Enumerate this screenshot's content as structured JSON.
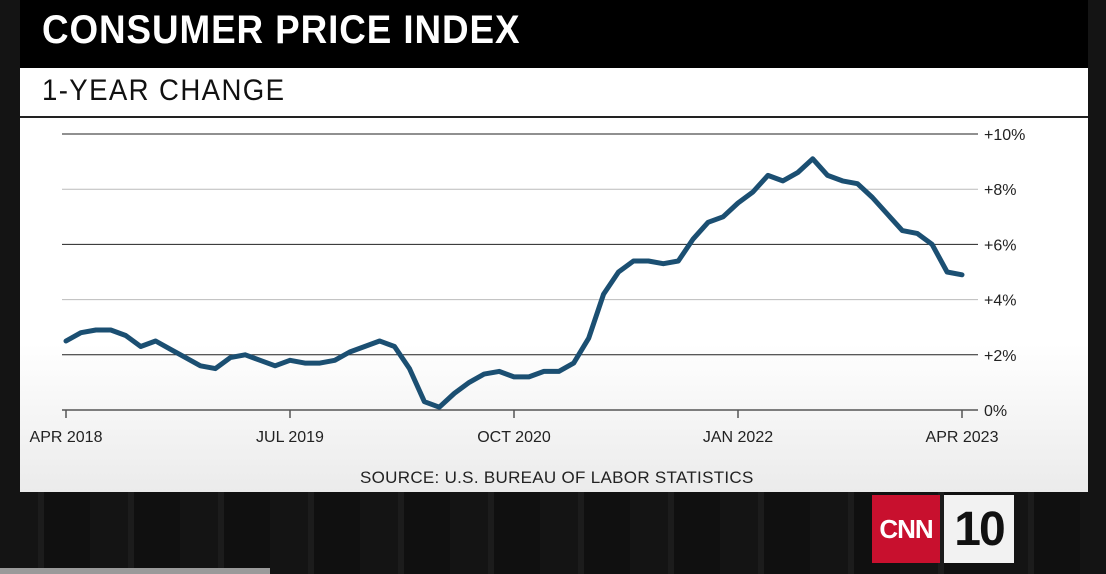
{
  "header": {
    "title": "CONSUMER PRICE INDEX"
  },
  "subheader": {
    "title": "1-YEAR CHANGE"
  },
  "footer": {
    "source": "SOURCE: U.S. BUREAU OF LABOR STATISTICS"
  },
  "logo": {
    "brand": "CNN",
    "number": "10",
    "brand_color": "#c8102e"
  },
  "chart_data": {
    "type": "line",
    "title": "1-YEAR CHANGE",
    "x_tick_labels": [
      "APR 2018",
      "JUL 2019",
      "OCT 2020",
      "JAN 2022",
      "APR 2023"
    ],
    "y_tick_labels": [
      "0%",
      "+2%",
      "+4%",
      "+6%",
      "+8%",
      "+10%"
    ],
    "y_ticks": [
      0,
      2,
      4,
      6,
      8,
      10
    ],
    "ylim": [
      0,
      10
    ],
    "y_axis_side": "right",
    "grid": true,
    "line_color": "#1b4f72",
    "series": [
      {
        "x": [
          "2018-04",
          "2018-05",
          "2018-06",
          "2018-07",
          "2018-08",
          "2018-09",
          "2018-10",
          "2018-11",
          "2018-12",
          "2019-01",
          "2019-02",
          "2019-03",
          "2019-04",
          "2019-05",
          "2019-06",
          "2019-07",
          "2019-08",
          "2019-09",
          "2019-10",
          "2019-11",
          "2019-12",
          "2020-01",
          "2020-02",
          "2020-03",
          "2020-04",
          "2020-05",
          "2020-06",
          "2020-07",
          "2020-08",
          "2020-09",
          "2020-10",
          "2020-11",
          "2020-12",
          "2021-01",
          "2021-02",
          "2021-03",
          "2021-04",
          "2021-05",
          "2021-06",
          "2021-07",
          "2021-08",
          "2021-09",
          "2021-10",
          "2021-11",
          "2021-12",
          "2022-01",
          "2022-02",
          "2022-03",
          "2022-04",
          "2022-05",
          "2022-06",
          "2022-07",
          "2022-08",
          "2022-09",
          "2022-10",
          "2022-11",
          "2022-12",
          "2023-01",
          "2023-02",
          "2023-03",
          "2023-04"
        ],
        "values": [
          2.5,
          2.8,
          2.9,
          2.9,
          2.7,
          2.3,
          2.5,
          2.2,
          1.9,
          1.6,
          1.5,
          1.9,
          2.0,
          1.8,
          1.6,
          1.8,
          1.7,
          1.7,
          1.8,
          2.1,
          2.3,
          2.5,
          2.3,
          1.5,
          0.3,
          0.1,
          0.6,
          1.0,
          1.3,
          1.4,
          1.2,
          1.2,
          1.4,
          1.4,
          1.7,
          2.6,
          4.2,
          5.0,
          5.4,
          5.4,
          5.3,
          5.4,
          6.2,
          6.8,
          7.0,
          7.5,
          7.9,
          8.5,
          8.3,
          8.6,
          9.1,
          8.5,
          8.3,
          8.2,
          7.7,
          7.1,
          6.5,
          6.4,
          6.0,
          5.0,
          4.9
        ]
      }
    ]
  }
}
